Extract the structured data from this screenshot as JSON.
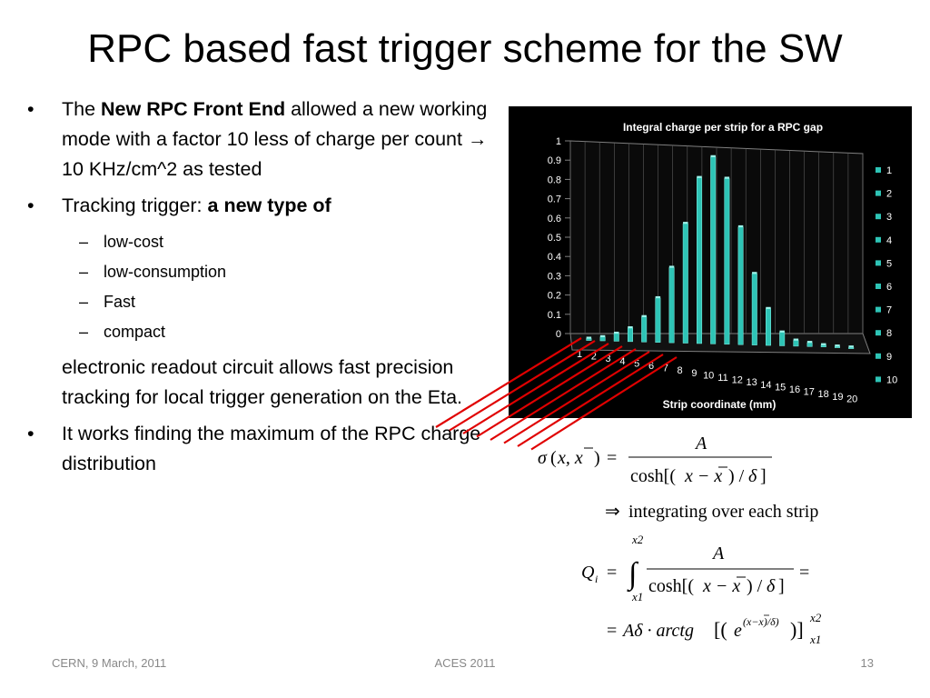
{
  "slide": {
    "title": "RPC based fast trigger scheme for the SW",
    "bullets": [
      {
        "marker": "•",
        "pre": "The ",
        "bold": "New RPC Front End",
        "post": " allowed a new working mode with a factor 10 less of charge per count ",
        "arrow": "→",
        "post2": " 10 KHz/cm^2 as tested"
      },
      {
        "marker": "•",
        "pre": "Tracking trigger: ",
        "bold": "a new type of",
        "subitems": [
          "low-cost",
          "low-consumption",
          "Fast",
          "compact"
        ],
        "dash": "–",
        "continuation": "electronic readout circuit  allows fast precision tracking for local trigger generation on the Eta."
      },
      {
        "marker": "•",
        "text": "It works finding the maximum of the RPC charge distribution"
      }
    ],
    "formulas": {
      "integrating": "integrating over each strip"
    }
  },
  "footer": {
    "left": "CERN, 9 March, 2011",
    "center": "ACES 2011",
    "right": "13"
  },
  "chart_data": {
    "type": "bar",
    "title": "Integral charge per strip for a RPC gap",
    "xlabel": "Strip coordinate (mm)",
    "ylabel": "",
    "ylim": [
      0,
      1
    ],
    "yticks": [
      "0",
      "0.1",
      "0.2",
      "0.3",
      "0.4",
      "0.5",
      "0.6",
      "0.7",
      "0.8",
      "0.9",
      "1"
    ],
    "categories": [
      "1",
      "2",
      "3",
      "4",
      "5",
      "6",
      "7",
      "8",
      "9",
      "10",
      "11",
      "12",
      "13",
      "14",
      "15",
      "16",
      "17",
      "18",
      "19",
      "20"
    ],
    "values": [
      0.01,
      0.02,
      0.04,
      0.07,
      0.13,
      0.23,
      0.39,
      0.62,
      0.86,
      0.97,
      0.86,
      0.61,
      0.37,
      0.19,
      0.07,
      0.03,
      0.02,
      0.01,
      0.005,
      0.002
    ],
    "legend": [
      "1",
      "2",
      "3",
      "4",
      "5",
      "6",
      "7",
      "8",
      "9",
      "10"
    ],
    "legend_position": "right",
    "grid": true,
    "colors": {
      "background": "#000000",
      "bar": "#2ec4b6",
      "text": "#ffffff",
      "grid": "#7f7f7f",
      "strip_lines": "#e00000"
    }
  }
}
